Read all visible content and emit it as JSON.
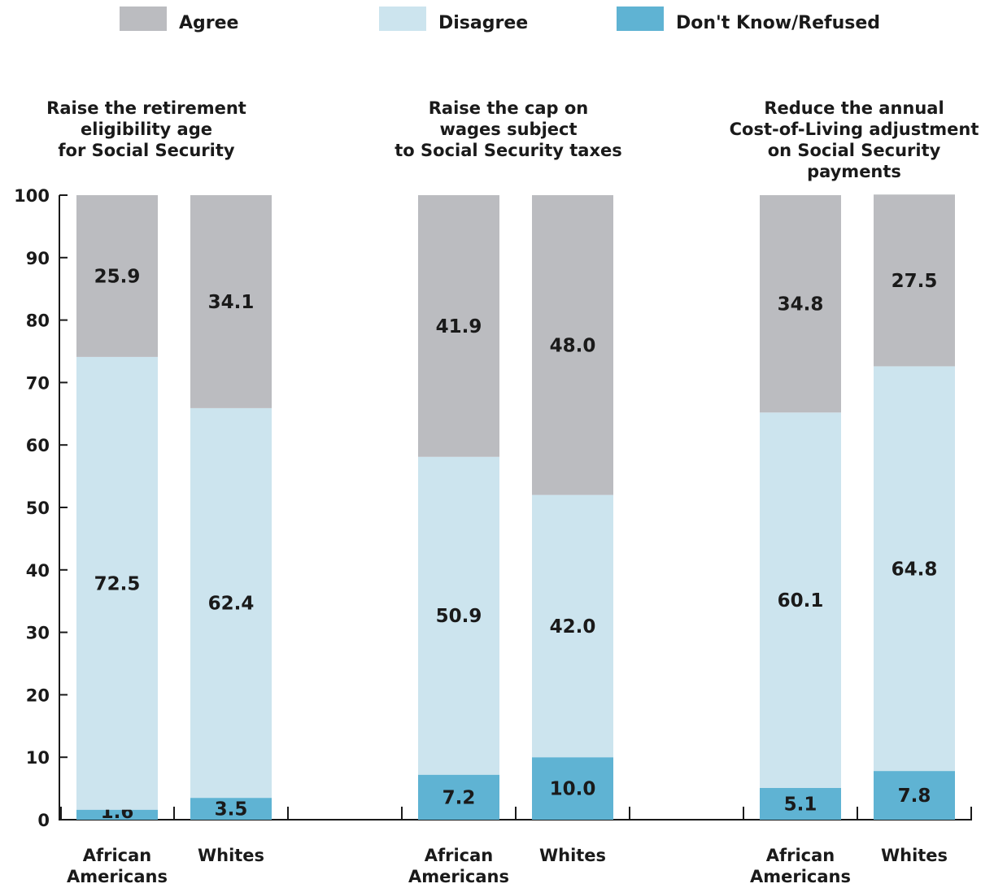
{
  "legend": [
    {
      "label": "Agree",
      "color": "#bbbcc0"
    },
    {
      "label": "Disagree",
      "color": "#cce4ee"
    },
    {
      "label": "Don't Know/Refused",
      "color": "#5fb3d3"
    }
  ],
  "chart_data": {
    "type": "bar",
    "stacked": true,
    "ylim": [
      0,
      100
    ],
    "yticks": [
      0,
      10,
      20,
      30,
      40,
      50,
      60,
      70,
      80,
      90,
      100
    ],
    "legend_position": "top",
    "series_order": [
      "Don't Know/Refused",
      "Disagree",
      "Agree"
    ],
    "groups": [
      {
        "title": [
          "Raise the retirement",
          "eligibility age",
          "for Social Security"
        ],
        "bars": [
          {
            "label": [
              "African",
              "Americans"
            ],
            "values": {
              "Agree": 25.9,
              "Disagree": 72.5,
              "Don't Know/Refused": 1.6
            }
          },
          {
            "label": [
              "Whites"
            ],
            "values": {
              "Agree": 34.1,
              "Disagree": 62.4,
              "Don't Know/Refused": 3.5
            }
          }
        ]
      },
      {
        "title": [
          "Raise the cap on",
          "wages subject",
          "to Social Security taxes"
        ],
        "bars": [
          {
            "label": [
              "African",
              "Americans"
            ],
            "values": {
              "Agree": 41.9,
              "Disagree": 50.9,
              "Don't Know/Refused": 7.2
            }
          },
          {
            "label": [
              "Whites"
            ],
            "values": {
              "Agree": 48.0,
              "Disagree": 42.0,
              "Don't Know/Refused": 10.0
            }
          }
        ]
      },
      {
        "title": [
          "Reduce the annual",
          "Cost-of-Living adjustment",
          "on Social Security",
          "payments"
        ],
        "bars": [
          {
            "label": [
              "African",
              "Americans"
            ],
            "values": {
              "Agree": 34.8,
              "Disagree": 60.1,
              "Don't Know/Refused": 5.1
            }
          },
          {
            "label": [
              "Whites"
            ],
            "values": {
              "Agree": 27.5,
              "Disagree": 64.8,
              "Don't Know/Refused": 7.8
            }
          }
        ]
      }
    ]
  }
}
